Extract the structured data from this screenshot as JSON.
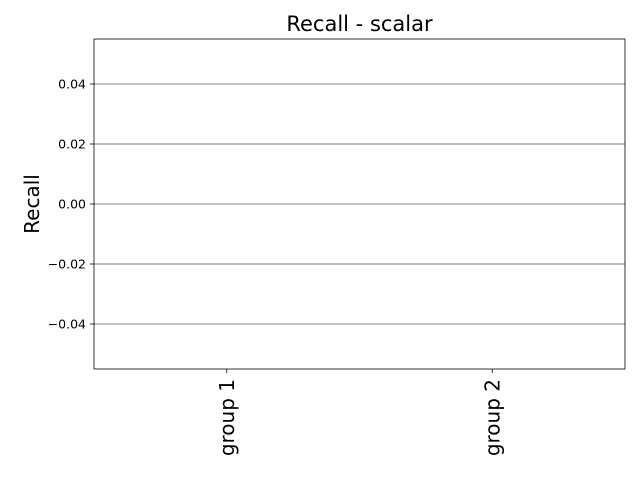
{
  "chart_data": {
    "type": "bar",
    "title": "Recall - scalar",
    "xlabel": "",
    "ylabel": "Recall",
    "categories": [
      "group 1",
      "group 2"
    ],
    "values": [
      0,
      0
    ],
    "ylim": [
      -0.055,
      0.055
    ],
    "yticks": [
      -0.04,
      -0.02,
      0.0,
      0.02,
      0.04
    ],
    "ytick_labels": [
      "−0.04",
      "−0.02",
      "0.00",
      "0.02",
      "0.04"
    ],
    "grid": "horizontal",
    "legend": "none",
    "colors": {
      "axes": "#000000",
      "grid": "#000000",
      "background": "#ffffff"
    }
  }
}
